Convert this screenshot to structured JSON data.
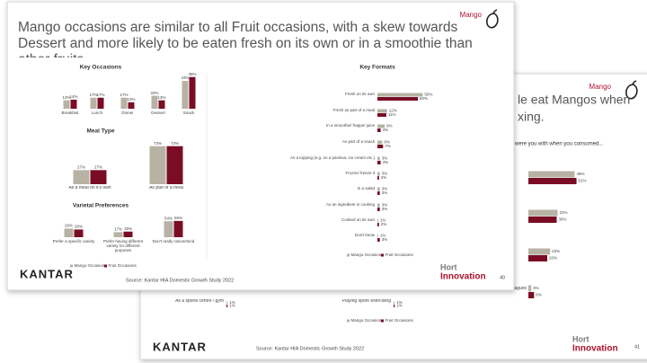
{
  "front_slide": {
    "brand": "Mango",
    "title": "Mango occasions are similar to all Fruit occasions, with a skew towards Dessert and more likely to be eaten fresh on its own or in a smoothie than other fruits.",
    "source": "Source: Kantar HIA Domestic Growth Study 2022",
    "page": "40",
    "logo": "KANTAR",
    "partner_logo": [
      "Hort",
      "Innovation"
    ]
  },
  "back_slide": {
    "brand": "Mango",
    "title_fragments": [
      "le eat Mangos when",
      "xing."
    ],
    "subtitle_fragment": "were you with when you consumed...",
    "source": "Source: Kantar HIA Domestic Growth Study 2022",
    "page": "41",
    "logo": "KANTAR",
    "partner_logo": [
      "Hort",
      "Innovation"
    ]
  },
  "chart_data": [
    {
      "type": "bar",
      "orientation": "vertical",
      "title": "Key Occasions",
      "categories": [
        "Breakfast",
        "Lunch",
        "Dinner",
        "Dessert",
        "Snack"
      ],
      "series": [
        {
          "name": "Mango Occasions",
          "color": "#b7b2a4",
          "values": [
            13,
            17,
            17,
            20,
            43
          ],
          "value_labels": [
            "13%",
            "17%",
            "17%",
            "20%",
            "43%"
          ]
        },
        {
          "name": "Fruit Occasions",
          "color": "#7a0d25",
          "values": [
            14,
            17,
            10,
            13,
            49
          ],
          "value_labels": [
            "14%",
            "17%",
            "10%",
            "13%",
            "49%"
          ]
        }
      ]
    },
    {
      "type": "bar",
      "orientation": "vertical",
      "title": "Meal Type",
      "categories": [
        "As a meal on it's own",
        "As part of a meal"
      ],
      "series": [
        {
          "name": "Mango Occasions",
          "color": "#b7b2a4",
          "values": [
            27,
            73
          ],
          "value_labels": [
            "27%",
            "73%"
          ]
        },
        {
          "name": "Fruit Occasions",
          "color": "#7a0d25",
          "values": [
            27,
            73
          ],
          "value_labels": [
            "27%",
            "73%"
          ]
        }
      ]
    },
    {
      "type": "bar",
      "orientation": "vertical",
      "title": "Varietal Preferences",
      "categories": [
        "Prefer a specific variety",
        "Prefer having different variety for different purposes",
        "Don't really notice/mind"
      ],
      "series": [
        {
          "name": "Mango Occasions",
          "color": "#b7b2a4",
          "values": [
            29,
            17,
            54
          ],
          "value_labels": [
            "29%",
            "17%",
            "54%"
          ]
        },
        {
          "name": "Fruit Occasions",
          "color": "#7a0d25",
          "values": [
            26,
            19,
            55
          ],
          "value_labels": [
            "26%",
            "19%",
            "55%"
          ]
        }
      ],
      "legend": "bottom"
    },
    {
      "type": "bar",
      "orientation": "horizontal",
      "title": "Key Formats",
      "categories": [
        "Fresh on its own",
        "Fresh as part of a meal",
        "In a smoothie/ frappe/ juice",
        "As part of a snack",
        "As a topping (e.g. on a pavlova, ice cream etc.)",
        "Frozen/ freeze it",
        "In a salad",
        "As an ingredient in cooking",
        "Cooked on its own",
        "Don't know"
      ],
      "series": [
        {
          "name": "Mango Occasions",
          "color": "#b7b2a4",
          "values": [
            56,
            12,
            9,
            6,
            3,
            3,
            3,
            3,
            1,
            1
          ],
          "value_labels": [
            "56%",
            "12%",
            "9%",
            "6%",
            "3%",
            "3%",
            "3%",
            "3%",
            "1%",
            "1%"
          ]
        },
        {
          "name": "Fruit Occasions",
          "color": "#7a0d25",
          "values": [
            50,
            11,
            4,
            7,
            4,
            2,
            3,
            3,
            2,
            3
          ],
          "value_labels": [
            "50%",
            "11%",
            "4%",
            "7%",
            "4%",
            "2%",
            "3%",
            "3%",
            "2%",
            "3%"
          ]
        }
      ],
      "legend": "bottom"
    },
    {
      "type": "bar",
      "orientation": "horizontal",
      "categories": [
        null,
        null,
        null,
        "Friends & Colleagues"
      ],
      "series": [
        {
          "name": "Mango Occasions",
          "color": "#b7b2a4",
          "values": [
            49,
            31,
            23,
            3
          ],
          "value_labels": [
            "49%",
            "31%",
            "23%",
            "3%"
          ]
        },
        {
          "name": "Fruit Occasions",
          "color": "#7a0d25",
          "values": [
            51,
            30,
            20,
            6
          ],
          "value_labels": [
            "51%",
            "30%",
            "20%",
            "6%"
          ]
        }
      ]
    },
    {
      "type": "bar",
      "orientation": "horizontal",
      "categories": [
        "As a sports centre / gym",
        "Playing sport/ exercising"
      ],
      "series": [
        {
          "name": "Mango Occasions",
          "color": "#b7b2a4",
          "values": [
            1,
            1
          ],
          "value_labels": [
            "1%",
            "1%"
          ]
        },
        {
          "name": "Fruit Occasions",
          "color": "#7a0d25",
          "values": [
            1,
            1
          ],
          "value_labels": [
            "1%",
            "1%"
          ]
        }
      ],
      "legend": "bottom"
    }
  ]
}
